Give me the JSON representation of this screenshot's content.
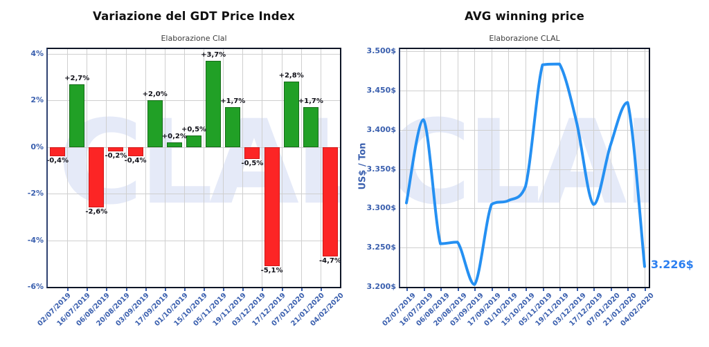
{
  "watermark": {
    "text": "CLAL",
    "color": "#e5eaf8"
  },
  "axis": {
    "text_color": "#3a5fae",
    "grid_color": "#cfcfcf"
  },
  "chart_data": [
    {
      "type": "bar",
      "title": "Variazione del GDT Price Index",
      "subtitle": "Elaborazione Clal",
      "categories": [
        "02/07/2019",
        "16/07/2019",
        "06/08/2019",
        "20/08/2019",
        "03/09/2019",
        "17/09/2019",
        "01/10/2019",
        "15/10/2019",
        "05/11/2019",
        "19/11/2019",
        "03/12/2019",
        "17/12/2019",
        "07/01/2020",
        "21/01/2020",
        "04/02/2020"
      ],
      "values": [
        -0.4,
        2.7,
        -2.6,
        -0.2,
        -0.4,
        2.0,
        0.2,
        0.5,
        3.7,
        1.7,
        -0.5,
        -5.1,
        2.8,
        1.7,
        -4.7
      ],
      "bar_labels": [
        "-0,4%",
        "+2,7%",
        "-2,6%",
        "-0,2%",
        "-0,4%",
        "+2,0%",
        "+0,2%",
        "+0,5%",
        "+3,7%",
        "+1,7%",
        "-0,5%",
        "-5,1%",
        "+2,8%",
        "+1,7%",
        "-4,7%"
      ],
      "ylabel": "",
      "ylim": [
        -6,
        4.2
      ],
      "ytick_values": [
        4,
        2,
        0,
        -2,
        -4,
        -6
      ],
      "ytick_labels": [
        "4%",
        "2%",
        "0%",
        "-2%",
        "-4%",
        "-6%"
      ],
      "grid": true,
      "legend": "none",
      "colors": {
        "positive": "#21a026",
        "positive_border": "#156b18",
        "negative": "#fc2525",
        "negative_border": "#cf1717",
        "label_text": "#101018"
      }
    },
    {
      "type": "line",
      "title": "AVG winning price",
      "subtitle": "Elaborazione CLAL",
      "ylabel": "US$ / Ton",
      "categories": [
        "02/07/2019",
        "16/07/2019",
        "06/08/2019",
        "20/08/2019",
        "03/09/2019",
        "17/09/2019",
        "01/10/2019",
        "15/10/2019",
        "05/11/2019",
        "19/11/2019",
        "03/12/2019",
        "17/12/2019",
        "07/01/2020",
        "21/01/2020",
        "04/02/2020"
      ],
      "values": [
        3307,
        3413,
        3255,
        3257,
        3203,
        3305,
        3310,
        3328,
        3483,
        3484,
        3410,
        3305,
        3381,
        3435,
        3226
      ],
      "ylim": [
        3200,
        3503
      ],
      "ytick_values": [
        3500,
        3450,
        3400,
        3350,
        3300,
        3250,
        3200
      ],
      "ytick_labels": [
        "3.500$",
        "3.450$",
        "3.400$",
        "3.350$",
        "3.300$",
        "3.250$",
        "3.200$"
      ],
      "grid": true,
      "legend": "none",
      "line_color": "#2590f2",
      "last_point_label": "3.226$"
    }
  ]
}
